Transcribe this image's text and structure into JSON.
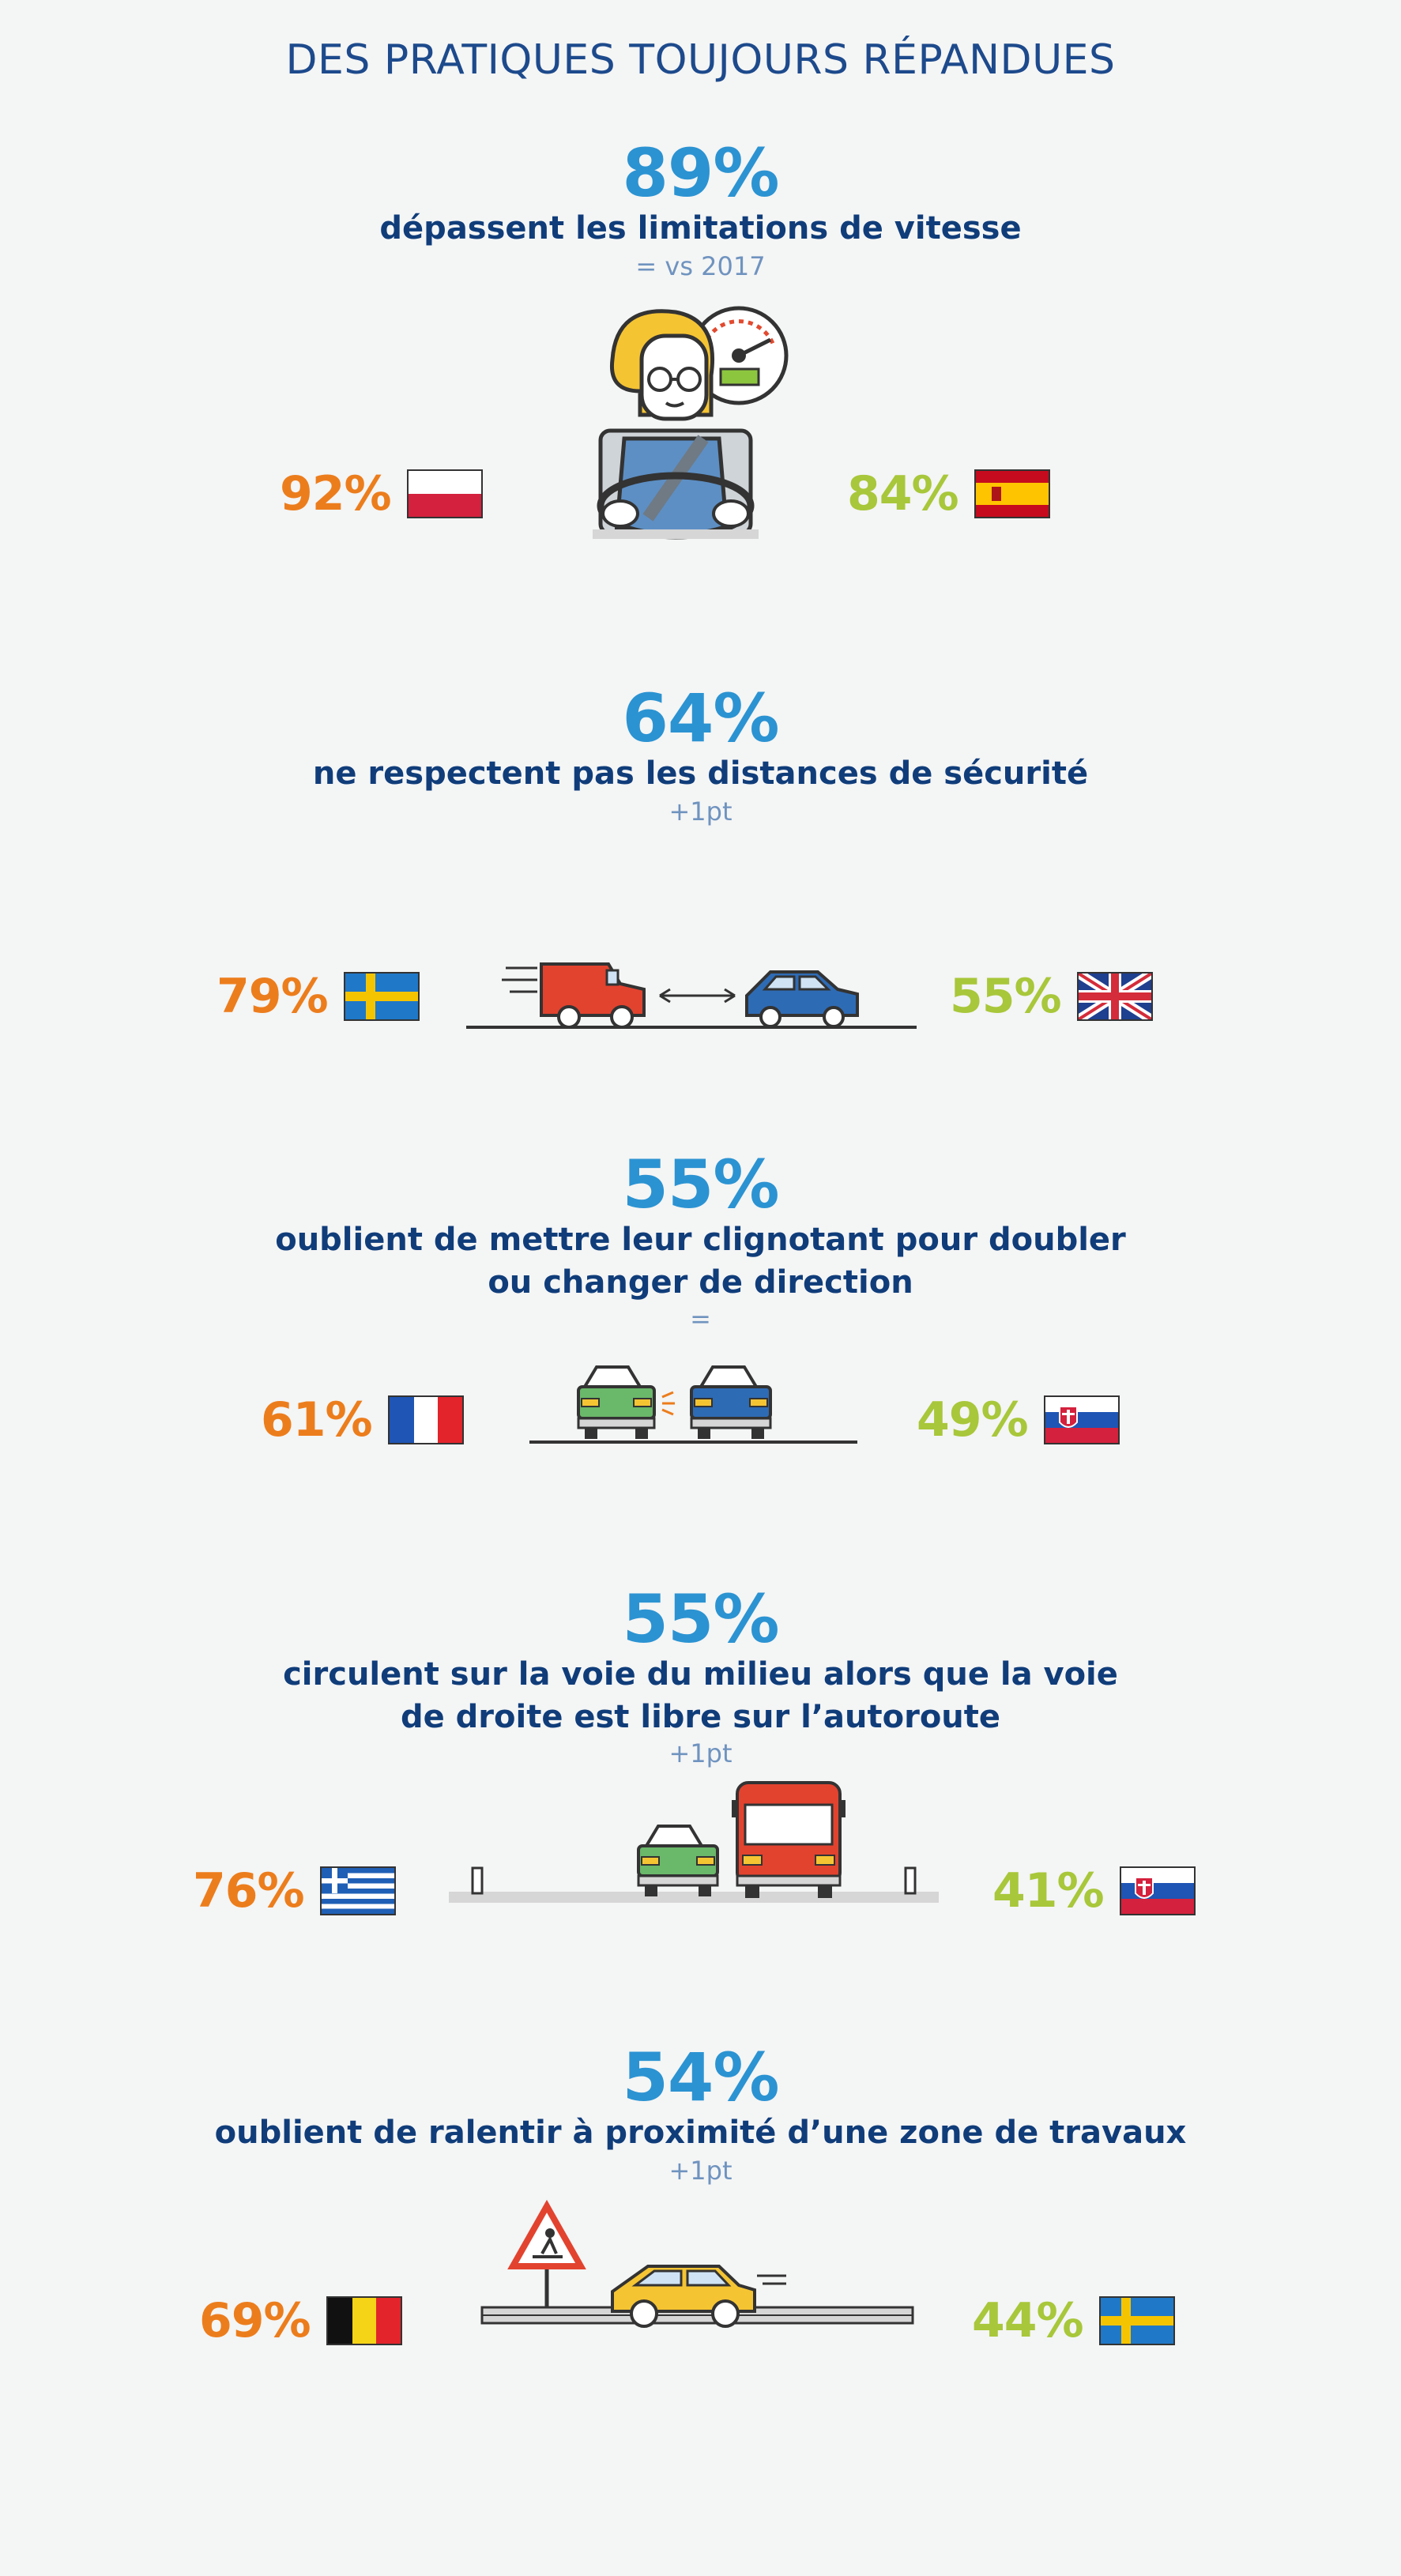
{
  "title": "DES PRATIQUES TOUJOURS RÉPANDUES",
  "colors": {
    "primary": "#2b93d2",
    "text": "#103d7a",
    "trend": "#6f93bf",
    "high": "#ec7d1c",
    "low": "#a8c73a"
  },
  "sections": [
    {
      "percent": "89%",
      "desc": "dépassent les limitations de vitesse",
      "trend": "= vs 2017",
      "left": {
        "value": "92%",
        "flag": "poland-flag"
      },
      "right": {
        "value": "84%",
        "flag": "spain-flag"
      },
      "illustration": "speeding-driver-icon"
    },
    {
      "percent": "64%",
      "desc": "ne respectent pas les distances de sécurité",
      "trend": "+1pt",
      "left": {
        "value": "79%",
        "flag": "sweden-flag"
      },
      "right": {
        "value": "55%",
        "flag": "uk-flag"
      },
      "illustration": "safety-distance-icon"
    },
    {
      "percent": "55%",
      "desc": "oublient de mettre leur clignotant pour doubler",
      "desc2": "ou changer de direction",
      "trend": "=",
      "left": {
        "value": "61%",
        "flag": "france-flag"
      },
      "right": {
        "value": "49%",
        "flag": "slovakia-flag"
      },
      "illustration": "turn-signal-icon"
    },
    {
      "percent": "55%",
      "desc": "circulent sur la voie du milieu alors que la voie",
      "desc2": "de droite est libre sur l’autoroute",
      "trend": "+1pt",
      "left": {
        "value": "76%",
        "flag": "greece-flag"
      },
      "right": {
        "value": "41%",
        "flag": "slovakia-flag"
      },
      "illustration": "middle-lane-icon"
    },
    {
      "percent": "54%",
      "desc": "oublient de ralentir à proximité d’une zone de travaux",
      "trend": "+1pt",
      "left": {
        "value": "69%",
        "flag": "belgium-flag"
      },
      "right": {
        "value": "44%",
        "flag": "sweden-flag"
      },
      "illustration": "roadworks-icon"
    }
  ]
}
